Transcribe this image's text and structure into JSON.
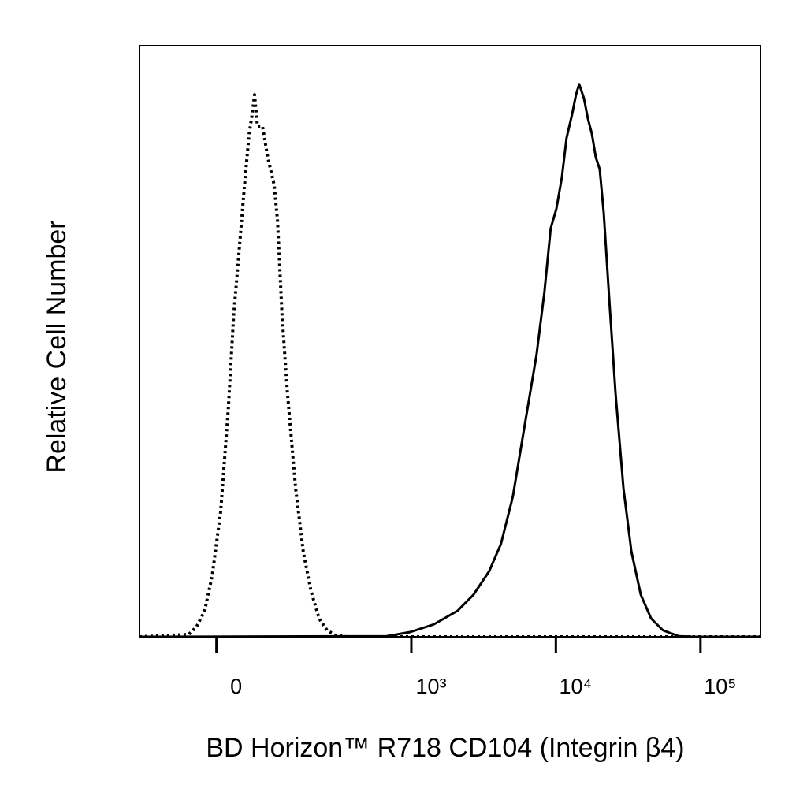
{
  "chart_data": {
    "type": "line",
    "xlabel": "BD Horizon™ R718 CD104 (Integrin β4)",
    "ylabel": "Relative Cell Number",
    "xscale": "biexponential",
    "xlim": [
      -140,
      260000
    ],
    "ylim": [
      0,
      100
    ],
    "xticks": [
      0,
      {
        "value": 1000,
        "label": "10³"
      },
      {
        "value": 10000,
        "label": "10⁴"
      },
      {
        "value": 100000,
        "label": "10⁵"
      }
    ],
    "series": [
      {
        "color": "#000000",
        "line_style": "dotted",
        "x": [
          -140,
          -41,
          -29,
          -17,
          -6,
          6,
          17,
          25,
          32,
          41,
          49,
          54,
          58,
          63,
          72,
          82,
          95,
          102,
          112,
          125,
          146,
          168,
          193,
          222,
          254,
          290,
          353,
          260000
        ],
        "values": [
          0,
          0.4,
          1.7,
          4.4,
          10.4,
          21.1,
          38.4,
          54.4,
          63.7,
          75.7,
          85.1,
          88.4,
          91.7,
          86.4,
          86.4,
          81.1,
          76.4,
          70.4,
          54.4,
          41.1,
          25.1,
          14.4,
          7.7,
          3.1,
          1.1,
          0.3,
          0,
          0
        ]
      },
      {
        "color": "#000000",
        "line_style": "solid",
        "x": [
          -140,
          673,
          981,
          1431,
          2090,
          2690,
          3460,
          4170,
          5040,
          6080,
          7350,
          8340,
          9210,
          10080,
          11000,
          11860,
          12950,
          13780,
          14490,
          15640,
          16640,
          17740,
          18890,
          20100,
          21430,
          23400,
          25880,
          29340,
          33290,
          38670,
          45540,
          55000,
          70800,
          91000,
          260000
        ],
        "values": [
          0,
          0.1,
          0.8,
          2.1,
          4.4,
          7.1,
          11.1,
          15.7,
          23.7,
          35.7,
          47.7,
          58.4,
          69.1,
          72.4,
          77.7,
          84.4,
          88.4,
          91.7,
          93.5,
          91.1,
          87.7,
          85.1,
          81.1,
          79.1,
          71.7,
          57.1,
          41.1,
          25.1,
          14.4,
          7.1,
          3.1,
          1.1,
          0.1,
          0,
          0
        ]
      }
    ]
  }
}
